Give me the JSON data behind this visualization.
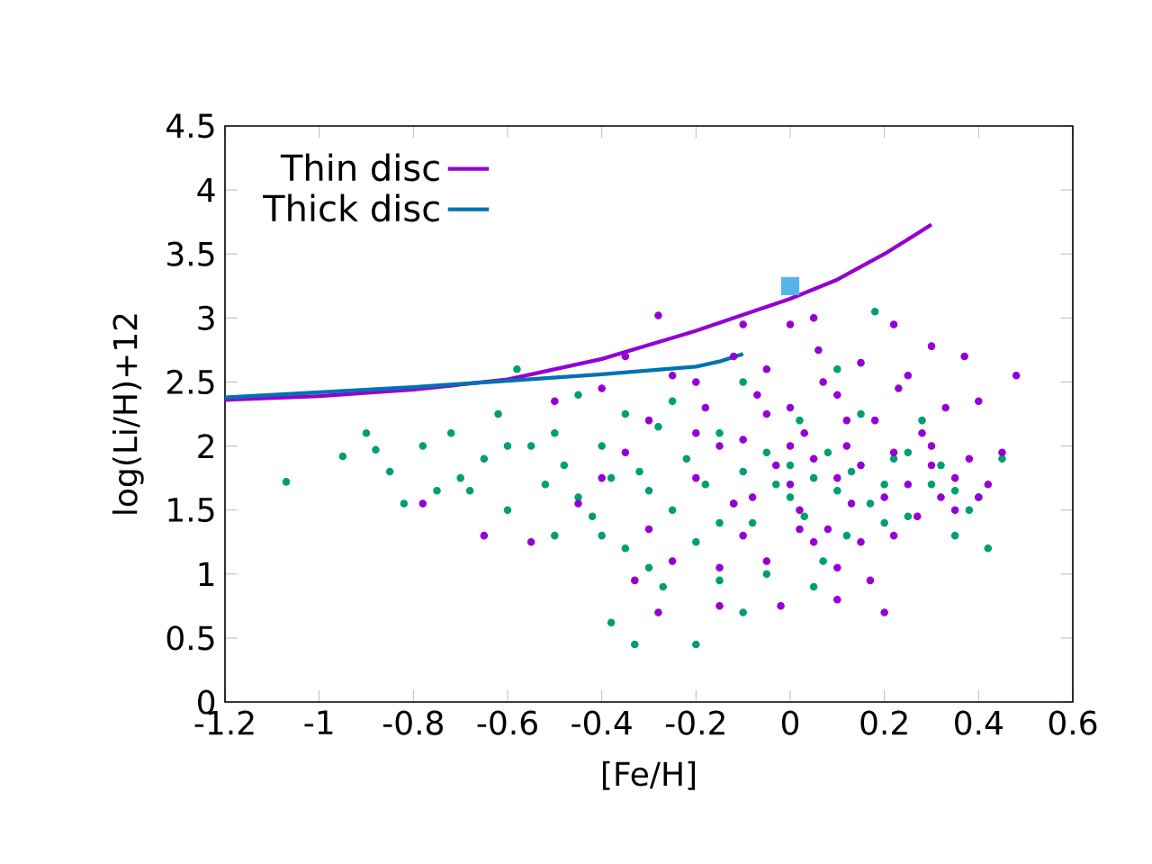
{
  "chart_data": {
    "type": "scatter",
    "xlabel": "[Fe/H]",
    "ylabel": "log(Li/H)+12",
    "xlim": [
      -1.2,
      0.6
    ],
    "ylim": [
      0,
      4.5
    ],
    "xticks": [
      -1.2,
      -1,
      -0.8,
      -0.6,
      -0.4,
      -0.2,
      0,
      0.2,
      0.4,
      0.6
    ],
    "yticks": [
      0,
      0.5,
      1,
      1.5,
      2,
      2.5,
      3,
      3.5,
      4,
      4.5
    ],
    "grid": false,
    "legend": "top left",
    "series": [
      {
        "type": "scatter",
        "marker": "circle",
        "color": "#009e73",
        "x": [
          -1.07,
          -0.95,
          -0.9,
          -0.88,
          -0.85,
          -0.82,
          -0.78,
          -0.75,
          -0.72,
          -0.7,
          -0.68,
          -0.65,
          -0.62,
          -0.6,
          -0.58,
          -0.55,
          -0.52,
          -0.5,
          -0.5,
          -0.48,
          -0.45,
          -0.42,
          -0.4,
          -0.38,
          -0.38,
          -0.35,
          -0.33,
          -0.32,
          -0.3,
          -0.28,
          -0.27,
          -0.25,
          -0.22,
          -0.2,
          -0.2,
          -0.18,
          -0.15,
          -0.12,
          -0.1,
          -0.1,
          -0.08,
          -0.05,
          -0.03,
          0,
          0,
          0.02,
          0.03,
          0.05,
          0.07,
          0.08,
          0.1,
          0.12,
          0.13,
          0.15,
          0.17,
          0.18,
          0.2,
          0.22,
          0.25,
          0.28,
          0.3,
          0.32,
          0.35,
          0.38,
          0.4,
          0.42,
          0.45,
          -0.25,
          -0.45,
          -0.1,
          -0.3,
          -0.05,
          0.05,
          -0.15,
          0.1,
          -0.6,
          -0.35,
          -0.15,
          0.25,
          0.35,
          -0.4,
          0.2
        ],
        "values": [
          1.72,
          1.92,
          2.1,
          1.97,
          1.8,
          1.55,
          2.0,
          1.65,
          2.1,
          1.75,
          1.65,
          1.9,
          2.25,
          1.5,
          2.6,
          2.0,
          1.7,
          1.3,
          2.1,
          1.85,
          1.6,
          1.45,
          2.0,
          0.62,
          1.75,
          1.2,
          0.45,
          1.8,
          1.65,
          2.15,
          0.9,
          1.5,
          1.9,
          1.25,
          0.45,
          1.7,
          2.1,
          1.55,
          0.7,
          1.8,
          1.4,
          1.95,
          1.7,
          1.6,
          1.85,
          2.2,
          1.45,
          1.75,
          1.1,
          1.95,
          1.65,
          1.3,
          1.8,
          2.25,
          1.55,
          3.05,
          1.7,
          1.9,
          1.45,
          2.2,
          1.7,
          1.85,
          1.65,
          1.5,
          1.6,
          1.2,
          1.9,
          2.35,
          2.4,
          2.5,
          1.05,
          1.0,
          0.9,
          0.95,
          2.6,
          2.0,
          2.25,
          1.4,
          1.95,
          1.3,
          1.3,
          1.4
        ]
      },
      {
        "type": "scatter",
        "marker": "circle",
        "color": "#9400d3",
        "x": [
          -0.35,
          -0.28,
          -0.1,
          0,
          0.05,
          0.22,
          0.3,
          0.37,
          0.4,
          0.48,
          0.45,
          -0.78,
          -0.65,
          -0.55,
          -0.5,
          -0.45,
          -0.4,
          -0.35,
          -0.3,
          -0.28,
          -0.25,
          -0.2,
          -0.18,
          -0.15,
          -0.12,
          -0.1,
          -0.08,
          -0.05,
          -0.03,
          0,
          0,
          0.02,
          0.03,
          0.05,
          0.06,
          0.08,
          0.1,
          0.1,
          0.12,
          0.13,
          0.15,
          0.15,
          0.17,
          0.18,
          0.2,
          0.22,
          0.23,
          0.25,
          0.27,
          0.28,
          0.3,
          0.32,
          0.33,
          0.35,
          0.38,
          0.4,
          0.42,
          0.35,
          -0.2,
          -0.15,
          -0.1,
          -0.05,
          0.05,
          0.1,
          -0.25,
          -0.02,
          0.1,
          0.2,
          -0.33,
          -0.15,
          -0.4,
          -0.3,
          0.25,
          0.07,
          -0.07,
          0.0,
          0.12,
          -0.2,
          -0.05,
          0.3,
          0.15,
          -0.12,
          0.02,
          0.22
        ],
        "values": [
          2.7,
          3.02,
          2.95,
          2.95,
          3.0,
          2.95,
          2.78,
          2.7,
          2.35,
          2.55,
          1.95,
          1.55,
          1.3,
          1.25,
          2.35,
          1.55,
          2.45,
          1.95,
          1.35,
          0.7,
          2.55,
          1.75,
          2.3,
          1.05,
          2.7,
          2.05,
          1.6,
          2.6,
          1.85,
          2.3,
          1.7,
          1.5,
          2.1,
          1.9,
          2.75,
          1.35,
          2.4,
          1.75,
          2.0,
          1.55,
          2.65,
          1.85,
          0.95,
          2.2,
          1.6,
          1.95,
          2.45,
          1.7,
          1.45,
          2.1,
          1.85,
          1.6,
          2.3,
          1.75,
          1.9,
          1.6,
          1.7,
          1.5,
          2.5,
          2.0,
          1.3,
          1.1,
          1.25,
          1.05,
          1.1,
          0.75,
          0.8,
          0.7,
          0.95,
          0.75,
          1.75,
          2.2,
          2.55,
          2.5,
          2.4,
          2.0,
          2.2,
          2.1,
          2.25,
          2.0,
          1.25,
          1.55,
          1.35,
          1.3
        ]
      },
      {
        "type": "scatter",
        "marker": "square",
        "color": "#56b4e9",
        "x": [
          0
        ],
        "values": [
          3.25
        ]
      },
      {
        "name": "Thin disc",
        "type": "line",
        "marker": "none",
        "color": "#9400d3",
        "x": [
          -1.2,
          -1.0,
          -0.8,
          -0.6,
          -0.4,
          -0.2,
          0,
          0.1,
          0.2,
          0.3
        ],
        "values": [
          2.36,
          2.39,
          2.44,
          2.52,
          2.68,
          2.9,
          3.15,
          3.3,
          3.5,
          3.73
        ]
      },
      {
        "name": "Thick disc",
        "type": "line",
        "marker": "none",
        "color": "#0072b2",
        "x": [
          -1.2,
          -0.8,
          -0.6,
          -0.4,
          -0.2,
          -0.15,
          -0.1
        ],
        "values": [
          2.38,
          2.46,
          2.51,
          2.56,
          2.62,
          2.66,
          2.72
        ]
      }
    ]
  }
}
